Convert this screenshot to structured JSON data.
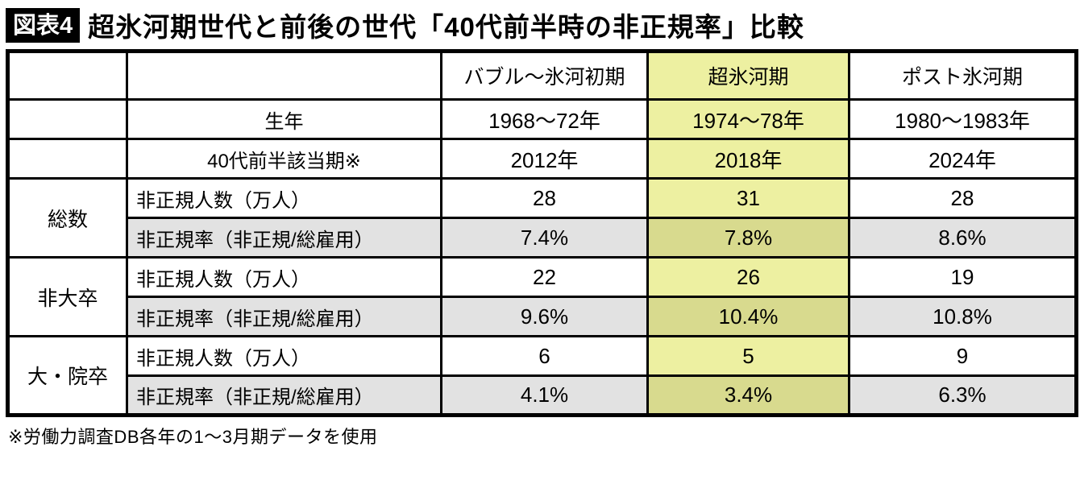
{
  "figure": {
    "badge": "図表4",
    "title": "超氷河期世代と前後の世代「40代前半時の非正規率」比較",
    "footnote": "※労働力調査DB各年の1〜3月期データを使用"
  },
  "colors": {
    "highlight": "#edf0a1",
    "highlight_shaded": "#d8da8e",
    "shaded": "#e2e2e2",
    "border": "#000000",
    "badge_bg": "#000000",
    "badge_text": "#ffffff"
  },
  "chart_data": {
    "type": "table",
    "title": "超氷河期世代と前後の世代「40代前半時の非正規率」比較",
    "column_headers": [
      "",
      "",
      "バブル〜氷河初期",
      "超氷河期",
      "ポスト氷河期"
    ],
    "highlighted_column": "超氷河期",
    "shaded_row_label": "非正規率（非正規/総雇用）",
    "rows": [
      [
        "",
        "生年",
        "1968〜72年",
        "1974〜78年",
        "1980〜1983年"
      ],
      [
        "",
        "40代前半該当期※",
        "2012年",
        "2018年",
        "2024年"
      ],
      [
        "総数",
        "非正規人数（万人）",
        "28",
        "31",
        "28"
      ],
      [
        "",
        "非正規率（非正規/総雇用）",
        "7.4%",
        "7.8%",
        "8.6%"
      ],
      [
        "非大卒",
        "非正規人数（万人）",
        "22",
        "26",
        "19"
      ],
      [
        "",
        "非正規率（非正規/総雇用）",
        "9.6%",
        "10.4%",
        "10.8%"
      ],
      [
        "大・院卒",
        "非正規人数（万人）",
        "6",
        "5",
        "9"
      ],
      [
        "",
        "非正規率（非正規/総雇用）",
        "4.1%",
        "3.4%",
        "6.3%"
      ]
    ],
    "footnote": "※労働力調査DB各年の1〜3月期データを使用"
  }
}
